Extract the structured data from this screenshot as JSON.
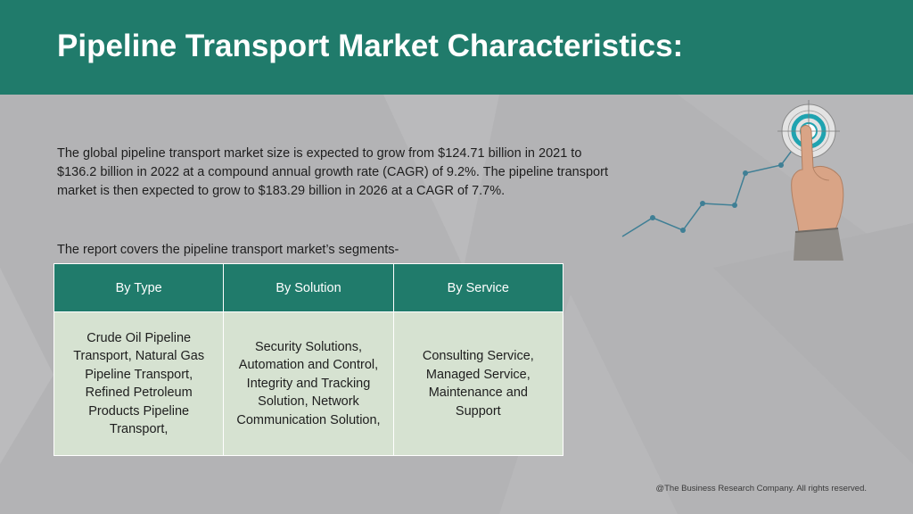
{
  "header": {
    "title": "Pipeline Transport Market Characteristics:",
    "background": "#207b6b"
  },
  "body": {
    "intro": "The global pipeline transport market size is expected to grow from $124.71 billion in 2021 to $136.2 billion in 2022 at a compound annual growth rate (CAGR) of 9.2%. The pipeline transport market is then expected to grow to $183.29 billion in 2026 at a CAGR of 7.7%.",
    "segments_label": "The report covers the pipeline transport market’s segments-"
  },
  "table": {
    "headers": [
      "By Type",
      "By Solution",
      "By Service"
    ],
    "cells": [
      "Crude Oil Pipeline Transport, Natural Gas Pipeline Transport, Refined Petroleum Products Pipeline Transport,",
      "Security Solutions, Automation and Control, Integrity and Tracking Solution, Network Communication Solution,",
      "Consulting Service, Managed Service, Maintenance and Support"
    ],
    "header_color": "#207b6b",
    "cell_color": "#d6e2d1"
  },
  "illustration": {
    "icon": "hand-touching-target-growth-line-icon",
    "accent": "#1fa3b0"
  },
  "footer": {
    "copyright": "@The Business Research Company. All rights reserved."
  }
}
